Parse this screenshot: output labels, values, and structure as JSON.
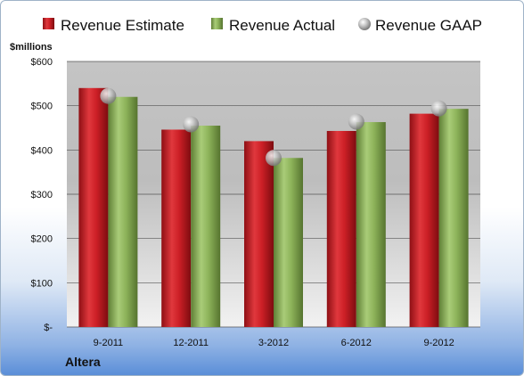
{
  "company": "Altera",
  "chart_data": {
    "type": "bar",
    "y_unit_label": "$millions",
    "categories": [
      "9-2011",
      "12-2011",
      "3-2012",
      "6-2012",
      "9-2012"
    ],
    "y_ticks": [
      {
        "value": 0,
        "label": "$-"
      },
      {
        "value": 100,
        "label": "$100"
      },
      {
        "value": 200,
        "label": "$200"
      },
      {
        "value": 300,
        "label": "$300"
      },
      {
        "value": 400,
        "label": "$400"
      },
      {
        "value": 500,
        "label": "$500"
      },
      {
        "value": 600,
        "label": "$600"
      }
    ],
    "ylim": [
      0,
      600
    ],
    "grid": true,
    "legend_position": "top",
    "series": [
      {
        "name": "Revenue Estimate",
        "kind": "bar",
        "color": "#cc1f26",
        "values": [
          540,
          446,
          420,
          443,
          482
        ]
      },
      {
        "name": "Revenue Actual",
        "kind": "bar",
        "color": "#8db35a",
        "values": [
          520,
          455,
          382,
          463,
          493
        ]
      },
      {
        "name": "Revenue GAAP",
        "kind": "marker",
        "color": "#b9b9b9",
        "values": [
          522,
          458,
          382,
          464,
          494
        ]
      }
    ]
  }
}
